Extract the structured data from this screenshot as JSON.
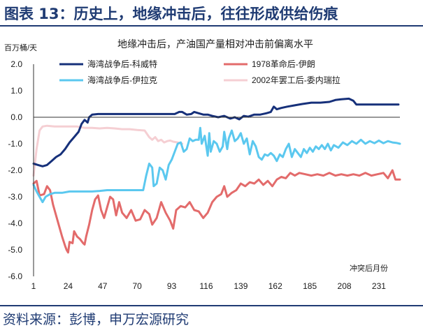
{
  "header": {
    "title": "图表 13：历史上，地缘冲击后，往往形成供给伤痕"
  },
  "footer": {
    "source": "资料来源：彭博，申万宏源研究"
  },
  "colors": {
    "navy": "#1f3b73"
  },
  "chart_data": {
    "type": "line",
    "title": "地缘冲击后，产油国产量相对冲击前偏离水平",
    "ylabel": "百万桶/天",
    "xlabel": "冲突后月份",
    "ylim": [
      -6.0,
      2.0
    ],
    "xlim": [
      1,
      245
    ],
    "yticks": [
      "2.0",
      "1.0",
      "0.0",
      "-1.0",
      "-2.0",
      "-3.0",
      "-4.0",
      "-5.0",
      "-6.0"
    ],
    "xticks": [
      "1",
      "24",
      "47",
      "70",
      "93",
      "116",
      "139",
      "162",
      "185",
      "208",
      "231"
    ],
    "legend_position": "top",
    "series": [
      {
        "name": "海湾战争后-科威特",
        "color": "#16307a",
        "points": [
          [
            1,
            -1.75
          ],
          [
            4,
            -1.8
          ],
          [
            7,
            -1.85
          ],
          [
            10,
            -1.8
          ],
          [
            13,
            -1.65
          ],
          [
            16,
            -1.5
          ],
          [
            19,
            -1.4
          ],
          [
            22,
            -1.2
          ],
          [
            25,
            -0.95
          ],
          [
            28,
            -0.75
          ],
          [
            31,
            -0.55
          ],
          [
            33,
            -0.25
          ],
          [
            35,
            -0.1
          ],
          [
            37,
            -0.2
          ],
          [
            38,
            0.0
          ],
          [
            40,
            0.1
          ],
          [
            44,
            0.12
          ],
          [
            50,
            0.12
          ],
          [
            60,
            0.12
          ],
          [
            70,
            0.12
          ],
          [
            80,
            0.12
          ],
          [
            90,
            0.12
          ],
          [
            95,
            0.12
          ],
          [
            98,
            0.2
          ],
          [
            100,
            0.2
          ],
          [
            103,
            0.1
          ],
          [
            106,
            0.12
          ],
          [
            108,
            0.2
          ],
          [
            111,
            0.15
          ],
          [
            114,
            0.1
          ],
          [
            117,
            0.1
          ],
          [
            120,
            0.05
          ],
          [
            124,
            0.0
          ],
          [
            128,
            0.05
          ],
          [
            132,
            -0.05
          ],
          [
            135,
            0.0
          ],
          [
            138,
            -0.08
          ],
          [
            141,
            0.05
          ],
          [
            144,
            0.02
          ],
          [
            148,
            0.1
          ],
          [
            152,
            0.1
          ],
          [
            156,
            0.15
          ],
          [
            159,
            0.2
          ],
          [
            161,
            0.4
          ],
          [
            163,
            0.3
          ],
          [
            166,
            0.35
          ],
          [
            170,
            0.4
          ],
          [
            175,
            0.45
          ],
          [
            180,
            0.5
          ],
          [
            186,
            0.55
          ],
          [
            192,
            0.55
          ],
          [
            198,
            0.58
          ],
          [
            202,
            0.65
          ],
          [
            206,
            0.68
          ],
          [
            211,
            0.7
          ],
          [
            214,
            0.62
          ],
          [
            216,
            0.48
          ],
          [
            220,
            0.48
          ],
          [
            226,
            0.48
          ],
          [
            232,
            0.48
          ],
          [
            238,
            0.48
          ],
          [
            244,
            0.48
          ]
        ]
      },
      {
        "name": "1978革命后-伊朗",
        "color": "#e36b6b",
        "points": [
          [
            1,
            -2.5
          ],
          [
            3,
            -2.4
          ],
          [
            5,
            -2.95
          ],
          [
            8,
            -2.9
          ],
          [
            10,
            -2.6
          ],
          [
            12,
            -2.75
          ],
          [
            14,
            -3.3
          ],
          [
            16,
            -3.7
          ],
          [
            18,
            -4.1
          ],
          [
            20,
            -4.5
          ],
          [
            22,
            -4.85
          ],
          [
            23,
            -5.0
          ],
          [
            24,
            -5.1
          ],
          [
            25,
            -4.7
          ],
          [
            27,
            -4.75
          ],
          [
            28,
            -4.3
          ],
          [
            30,
            -4.5
          ],
          [
            32,
            -4.6
          ],
          [
            34,
            -4.75
          ],
          [
            35,
            -4.8
          ],
          [
            36,
            -4.5
          ],
          [
            38,
            -4.05
          ],
          [
            40,
            -3.5
          ],
          [
            42,
            -3.1
          ],
          [
            44,
            -2.95
          ],
          [
            46,
            -3.5
          ],
          [
            48,
            -3.8
          ],
          [
            50,
            -3.4
          ],
          [
            52,
            -3.0
          ],
          [
            54,
            -3.1
          ],
          [
            56,
            -3.7
          ],
          [
            58,
            -3.2
          ],
          [
            60,
            -3.6
          ],
          [
            63,
            -3.8
          ],
          [
            66,
            -3.5
          ],
          [
            69,
            -3.9
          ],
          [
            72,
            -3.85
          ],
          [
            75,
            -3.5
          ],
          [
            78,
            -3.65
          ],
          [
            80,
            -4.05
          ],
          [
            83,
            -3.8
          ],
          [
            86,
            -3.2
          ],
          [
            89,
            -3.6
          ],
          [
            92,
            -3.9
          ],
          [
            94,
            -4.2
          ],
          [
            96,
            -3.5
          ],
          [
            99,
            -3.35
          ],
          [
            102,
            -3.4
          ],
          [
            105,
            -3.2
          ],
          [
            108,
            -3.5
          ],
          [
            111,
            -3.55
          ],
          [
            114,
            -3.8
          ],
          [
            117,
            -3.6
          ],
          [
            120,
            -3.2
          ],
          [
            123,
            -3.0
          ],
          [
            126,
            -2.9
          ],
          [
            128,
            -2.6
          ],
          [
            130,
            -3.0
          ],
          [
            133,
            -2.85
          ],
          [
            136,
            -2.75
          ],
          [
            139,
            -2.5
          ],
          [
            142,
            -2.6
          ],
          [
            145,
            -2.45
          ],
          [
            148,
            -2.5
          ],
          [
            151,
            -2.35
          ],
          [
            154,
            -2.55
          ],
          [
            157,
            -2.4
          ],
          [
            160,
            -2.6
          ],
          [
            163,
            -2.35
          ],
          [
            166,
            -2.25
          ],
          [
            169,
            -2.3
          ],
          [
            172,
            -2.1
          ],
          [
            175,
            -2.2
          ],
          [
            178,
            -2.1
          ],
          [
            182,
            -2.15
          ],
          [
            186,
            -2.2
          ],
          [
            190,
            -2.15
          ],
          [
            194,
            -2.2
          ],
          [
            198,
            -2.1
          ],
          [
            202,
            -2.2
          ],
          [
            206,
            -2.15
          ],
          [
            210,
            -2.2
          ],
          [
            214,
            -2.15
          ],
          [
            218,
            -2.2
          ],
          [
            222,
            -2.1
          ],
          [
            226,
            -2.2
          ],
          [
            230,
            -2.15
          ],
          [
            234,
            -2.1
          ],
          [
            237,
            -2.3
          ],
          [
            240,
            -2.0
          ],
          [
            242,
            -2.35
          ],
          [
            245,
            -2.35
          ]
        ]
      },
      {
        "name": "海湾战争后-伊拉克",
        "color": "#5bc8ef",
        "points": [
          [
            1,
            -2.55
          ],
          [
            3,
            -2.8
          ],
          [
            5,
            -3.0
          ],
          [
            7,
            -3.2
          ],
          [
            9,
            -3.0
          ],
          [
            12,
            -2.9
          ],
          [
            15,
            -2.85
          ],
          [
            20,
            -2.85
          ],
          [
            25,
            -2.8
          ],
          [
            30,
            -2.8
          ],
          [
            35,
            -2.8
          ],
          [
            40,
            -2.8
          ],
          [
            45,
            -2.78
          ],
          [
            50,
            -2.75
          ],
          [
            55,
            -2.75
          ],
          [
            60,
            -2.75
          ],
          [
            65,
            -2.75
          ],
          [
            70,
            -2.75
          ],
          [
            74,
            -2.75
          ],
          [
            76,
            -2.2
          ],
          [
            78,
            -1.75
          ],
          [
            80,
            -1.9
          ],
          [
            81,
            -2.6
          ],
          [
            83,
            -2.5
          ],
          [
            85,
            -1.9
          ],
          [
            87,
            -2.0
          ],
          [
            89,
            -2.35
          ],
          [
            91,
            -1.8
          ],
          [
            93,
            -1.6
          ],
          [
            95,
            -1.3
          ],
          [
            97,
            -1.0
          ],
          [
            99,
            -0.95
          ],
          [
            101,
            -1.3
          ],
          [
            103,
            -1.2
          ],
          [
            105,
            -0.8
          ],
          [
            107,
            -0.9
          ],
          [
            109,
            -0.85
          ],
          [
            111,
            -0.85
          ],
          [
            112,
            -0.4
          ],
          [
            113,
            -1.0
          ],
          [
            115,
            -0.7
          ],
          [
            117,
            -1.45
          ],
          [
            118,
            -0.6
          ],
          [
            119,
            -1.3
          ],
          [
            121,
            -0.9
          ],
          [
            123,
            -1.0
          ],
          [
            125,
            -1.3
          ],
          [
            127,
            -1.1
          ],
          [
            128,
            -0.55
          ],
          [
            130,
            -1.2
          ],
          [
            131,
            -0.8
          ],
          [
            133,
            -0.5
          ],
          [
            135,
            -0.9
          ],
          [
            137,
            -0.8
          ],
          [
            139,
            -0.6
          ],
          [
            141,
            -1.0
          ],
          [
            143,
            -0.8
          ],
          [
            145,
            -1.4
          ],
          [
            147,
            -0.9
          ],
          [
            149,
            -1.1
          ],
          [
            151,
            -1.5
          ],
          [
            153,
            -1.6
          ],
          [
            155,
            -1.4
          ],
          [
            157,
            -1.45
          ],
          [
            159,
            -1.35
          ],
          [
            161,
            -1.45
          ],
          [
            163,
            -1.65
          ],
          [
            165,
            -1.4
          ],
          [
            167,
            -1.5
          ],
          [
            169,
            -1.2
          ],
          [
            171,
            -1.0
          ],
          [
            173,
            -1.5
          ],
          [
            175,
            -1.2
          ],
          [
            177,
            -1.35
          ],
          [
            179,
            -1.5
          ],
          [
            181,
            -1.2
          ],
          [
            183,
            -1.35
          ],
          [
            185,
            -1.15
          ],
          [
            187,
            -1.3
          ],
          [
            189,
            -1.1
          ],
          [
            191,
            -1.2
          ],
          [
            193,
            -1.05
          ],
          [
            195,
            -1.2
          ],
          [
            197,
            -1.0
          ],
          [
            199,
            -1.25
          ],
          [
            201,
            -1.05
          ],
          [
            204,
            -1.15
          ],
          [
            207,
            -0.95
          ],
          [
            210,
            -1.05
          ],
          [
            213,
            -0.9
          ],
          [
            216,
            -1.0
          ],
          [
            219,
            -0.85
          ],
          [
            222,
            -1.0
          ],
          [
            225,
            -0.9
          ],
          [
            228,
            -0.98
          ],
          [
            231,
            -0.88
          ],
          [
            234,
            -0.98
          ],
          [
            237,
            -0.9
          ],
          [
            240,
            -0.95
          ],
          [
            243,
            -0.97
          ],
          [
            245,
            -1.0
          ]
        ]
      },
      {
        "name": "2002年罢工后-委内瑞拉",
        "color": "#f5cfd3",
        "points": [
          [
            1,
            -2.2
          ],
          [
            3,
            -1.2
          ],
          [
            5,
            -0.5
          ],
          [
            7,
            -0.35
          ],
          [
            10,
            -0.32
          ],
          [
            15,
            -0.35
          ],
          [
            20,
            -0.35
          ],
          [
            25,
            -0.35
          ],
          [
            30,
            -0.35
          ],
          [
            35,
            -0.4
          ],
          [
            40,
            -0.4
          ],
          [
            45,
            -0.42
          ],
          [
            50,
            -0.4
          ],
          [
            55,
            -0.42
          ],
          [
            60,
            -0.45
          ],
          [
            65,
            -0.45
          ],
          [
            70,
            -0.48
          ],
          [
            75,
            -0.5
          ],
          [
            78,
            -0.75
          ],
          [
            80,
            -0.85
          ],
          [
            82,
            -0.75
          ],
          [
            84,
            -0.9
          ],
          [
            86,
            -0.85
          ],
          [
            88,
            -0.95
          ],
          [
            90,
            -0.9
          ],
          [
            92,
            -0.88
          ],
          [
            94,
            -0.92
          ],
          [
            97,
            -0.95
          ],
          [
            100,
            -1.0
          ]
        ]
      }
    ]
  }
}
